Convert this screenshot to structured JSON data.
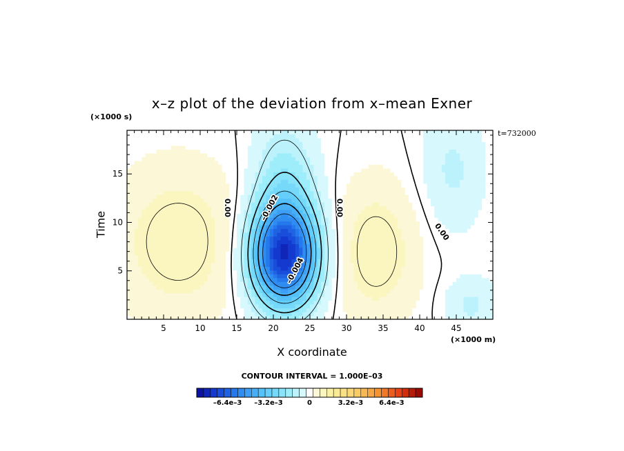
{
  "chart_data": {
    "type": "heatmap",
    "title": "x–z plot of the deviation from x–mean Exner",
    "xlabel": "X coordinate",
    "ylabel": "Time",
    "x_multiplier": "(×1000 m)",
    "y_multiplier": "(×1000 s)",
    "timestamp": "t=732000",
    "contour_interval_text": "CONTOUR INTERVAL = 1.000E–03",
    "xlim": [
      0,
      50
    ],
    "ylim": [
      0,
      19.5
    ],
    "x_ticks": [
      5,
      10,
      15,
      20,
      25,
      30,
      35,
      40,
      45
    ],
    "y_ticks": [
      5,
      10,
      15
    ],
    "colorbar": {
      "min": -0.0088,
      "max": 0.0088,
      "levels": 33,
      "tick_values": [
        -0.0064,
        -0.0032,
        0,
        0.0032,
        0.0064
      ],
      "tick_labels": [
        "–6.4e–3",
        "–3.2e–3",
        "0",
        "3.2e–3",
        "6.4e–3"
      ]
    },
    "features": [
      {
        "name": "negative core",
        "x": 21.5,
        "y": 6.5,
        "value": -0.0072
      },
      {
        "name": "positive lobe left",
        "x": 7,
        "y": 8,
        "value": 0.0012
      },
      {
        "name": "positive lobe middle",
        "x": 34,
        "y": 7,
        "value": 0.0012
      },
      {
        "name": "negative lobe upper right",
        "x": 44,
        "y": 15,
        "value": -0.0008
      },
      {
        "name": "negative lobe lower right",
        "x": 47,
        "y": 2,
        "value": -0.0008
      }
    ],
    "contour_labels": [
      {
        "text": "0.00",
        "x": 13.7,
        "y": 11.5,
        "angle": 90
      },
      {
        "text": "–0.002",
        "x": 19.5,
        "y": 11.5,
        "angle": -62
      },
      {
        "text": "0.00",
        "x": 29,
        "y": 11.5,
        "angle": 90
      },
      {
        "text": "–0.004",
        "x": 23,
        "y": 5,
        "angle": -62
      },
      {
        "text": "0.00",
        "x": 43,
        "y": 9,
        "angle": 55
      }
    ]
  }
}
